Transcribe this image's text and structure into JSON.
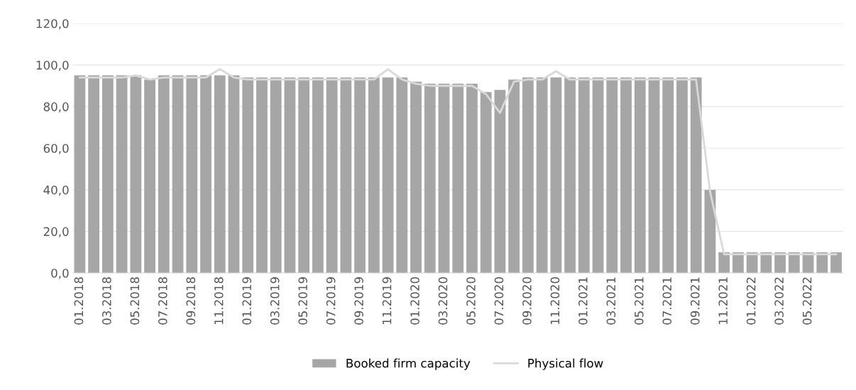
{
  "chart_data": {
    "type": "bar",
    "categories": [
      "01.2018",
      null,
      "03.2018",
      null,
      "05.2018",
      null,
      "07.2018",
      null,
      "09.2018",
      null,
      "11.2018",
      null,
      "01.2019",
      null,
      "03.2019",
      null,
      "05.2019",
      null,
      "07.2019",
      null,
      "09.2019",
      null,
      "11.2019",
      null,
      "01.2020",
      null,
      "03.2020",
      null,
      "05.2020",
      null,
      "07.2020",
      null,
      "09.2020",
      null,
      "11.2020",
      null,
      "01.2021",
      null,
      "03.2021",
      null,
      "05.2021",
      null,
      "07.2021",
      null,
      "09.2021",
      null,
      "11.2021",
      null,
      "01.2022",
      null,
      "03.2022",
      null,
      "05.2022",
      null,
      null
    ],
    "series": [
      {
        "name": "Booked firm capacity",
        "color": "#a6a6a6",
        "values": [
          95,
          95,
          95,
          95,
          95,
          93,
          95,
          95,
          95,
          95,
          95,
          95,
          94,
          94,
          94,
          94,
          94,
          94,
          94,
          94,
          94,
          94,
          94,
          94,
          92,
          91,
          91,
          91,
          91,
          87,
          88,
          93,
          94,
          94,
          94,
          94,
          94,
          94,
          94,
          94,
          94,
          94,
          94,
          94,
          94,
          40,
          10,
          10,
          10,
          10,
          10,
          10,
          10,
          10,
          10
        ]
      },
      {
        "name": "Physical flow",
        "color": "#d9d9d9",
        "type": "line",
        "values": [
          94,
          94,
          94,
          94,
          95,
          93,
          94,
          94,
          94,
          94,
          98,
          94,
          93,
          93,
          93,
          93,
          93,
          93,
          93,
          93,
          93,
          93,
          98,
          93,
          91,
          90,
          90,
          90,
          90,
          86,
          77,
          92,
          93,
          93,
          97,
          93,
          93,
          93,
          93,
          93,
          93,
          93,
          93,
          93,
          93,
          39,
          9,
          9,
          9,
          9,
          9,
          9,
          9,
          9,
          9
        ]
      }
    ],
    "ylim": [
      0,
      120
    ],
    "yticks": [
      {
        "value": 0,
        "label": "0,0"
      },
      {
        "value": 20,
        "label": "20,0"
      },
      {
        "value": 40,
        "label": "40,0"
      },
      {
        "value": 60,
        "label": "60,0"
      },
      {
        "value": 80,
        "label": "80,0"
      },
      {
        "value": 100,
        "label": "100,0"
      },
      {
        "value": 120,
        "label": "120,0"
      }
    ],
    "grid": "y",
    "legend": "bottom"
  }
}
